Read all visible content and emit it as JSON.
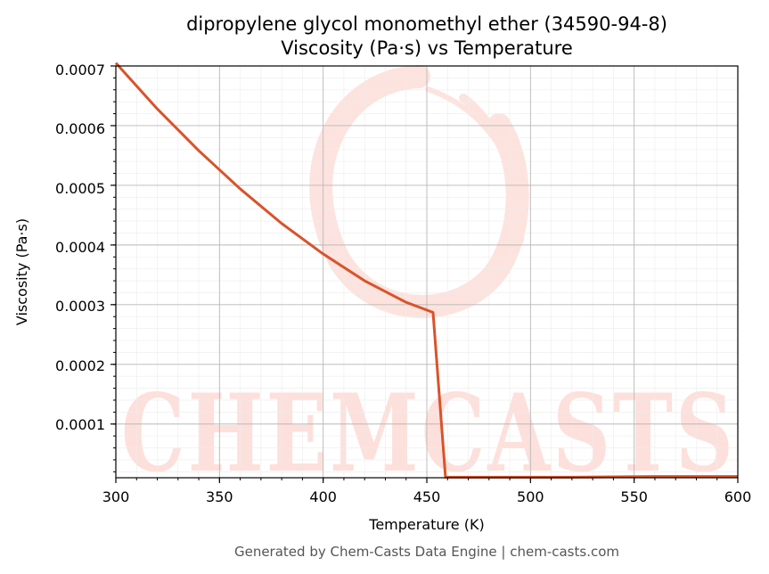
{
  "chart_data": {
    "type": "line",
    "title_line1": "dipropylene glycol monomethyl ether (34590-94-8)",
    "title_line2": "Viscosity (Pa·s) vs Temperature",
    "xlabel": "Temperature (K)",
    "ylabel": "Viscosity (Pa·s)",
    "xlim": [
      300,
      600
    ],
    "ylim": [
      1e-05,
      0.0007
    ],
    "x_ticks": [
      "300",
      "350",
      "400",
      "450",
      "500",
      "550",
      "600"
    ],
    "y_ticks": [
      "0.0001",
      "0.0002",
      "0.0003",
      "0.0004",
      "0.0005",
      "0.0006",
      "0.0007"
    ],
    "grid": true,
    "series": [
      {
        "color": "#d9532a",
        "x": [
          300,
          320,
          340,
          360,
          380,
          400,
          420,
          440,
          453,
          459,
          480,
          520,
          560,
          600
        ],
        "y": [
          0.000705,
          0.000628,
          0.000558,
          0.000494,
          0.000436,
          0.000385,
          0.00034,
          0.000304,
          0.000287,
          1.1e-05,
          1.1e-05,
          1.1e-05,
          1.2e-05,
          1.2e-05
        ]
      }
    ]
  },
  "watermark": {
    "text": "CHEMCASTS",
    "color": "#fde0db"
  },
  "footer": {
    "text": "Generated by Chem-Casts Data Engine | chem-casts.com"
  }
}
